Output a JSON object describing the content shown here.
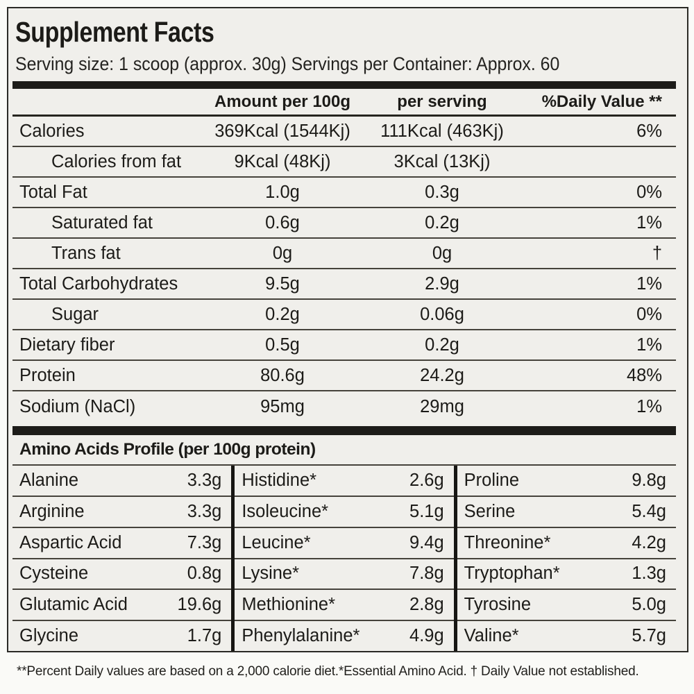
{
  "facts": {
    "title": "Supplement Facts",
    "serving_line": "Serving size: 1 scoop (approx. 30g) Servings per Container: Approx. 60",
    "headers": {
      "amount_per_100g": "Amount per 100g",
      "per_serving": "per serving",
      "daily_value": "%Daily Value **"
    },
    "rows": [
      {
        "name": "Calories",
        "indent": false,
        "per100g": "369Kcal (1544Kj)",
        "per_serving": "111Kcal (463Kj)",
        "dv": "6%"
      },
      {
        "name": "Calories from fat",
        "indent": true,
        "per100g": "9Kcal (48Kj)",
        "per_serving": "3Kcal (13Kj)",
        "dv": ""
      },
      {
        "name": "Total Fat",
        "indent": false,
        "per100g": "1.0g",
        "per_serving": "0.3g",
        "dv": "0%"
      },
      {
        "name": "Saturated fat",
        "indent": true,
        "per100g": "0.6g",
        "per_serving": "0.2g",
        "dv": "1%"
      },
      {
        "name": "Trans fat",
        "indent": true,
        "per100g": "0g",
        "per_serving": "0g",
        "dv": "†"
      },
      {
        "name": "Total Carbohydrates",
        "indent": false,
        "per100g": "9.5g",
        "per_serving": "2.9g",
        "dv": "1%"
      },
      {
        "name": "Sugar",
        "indent": true,
        "per100g": "0.2g",
        "per_serving": "0.06g",
        "dv": "0%"
      },
      {
        "name": "Dietary fiber",
        "indent": false,
        "per100g": "0.5g",
        "per_serving": "0.2g",
        "dv": "1%"
      },
      {
        "name": "Protein",
        "indent": false,
        "per100g": "80.6g",
        "per_serving": "24.2g",
        "dv": "48%"
      },
      {
        "name": "Sodium (NaCl)",
        "indent": false,
        "per100g": "95mg",
        "per_serving": "29mg",
        "dv": "1%"
      }
    ],
    "amino_profile": {
      "heading": "Amino Acids Profile (per 100g protein)",
      "columns": [
        {
          "items": [
            {
              "name": "Alanine",
              "value": "3.3g"
            },
            {
              "name": "Arginine",
              "value": "3.3g"
            },
            {
              "name": "Aspartic Acid",
              "value": "7.3g"
            },
            {
              "name": "Cysteine",
              "value": "0.8g"
            },
            {
              "name": "Glutamic Acid",
              "value": "19.6g"
            },
            {
              "name": "Glycine",
              "value": "1.7g"
            }
          ]
        },
        {
          "items": [
            {
              "name": "Histidine*",
              "value": "2.6g"
            },
            {
              "name": "Isoleucine*",
              "value": "5.1g"
            },
            {
              "name": "Leucine*",
              "value": "9.4g"
            },
            {
              "name": "Lysine*",
              "value": "7.8g"
            },
            {
              "name": "Methionine*",
              "value": "2.8g"
            },
            {
              "name": "Phenylalanine*",
              "value": "4.9g"
            }
          ]
        },
        {
          "items": [
            {
              "name": "Proline",
              "value": "9.8g"
            },
            {
              "name": "Serine",
              "value": "5.4g"
            },
            {
              "name": "Threonine*",
              "value": "4.2g"
            },
            {
              "name": "Tryptophan*",
              "value": "1.3g"
            },
            {
              "name": "Tyrosine",
              "value": "5.0g"
            },
            {
              "name": "Valine*",
              "value": "5.7g"
            }
          ]
        }
      ]
    },
    "footnote": "**Percent Daily values are based on a 2,000 calorie diet.*Essential Amino Acid. † Daily Value not established.",
    "colors": {
      "background": "#f0efeb",
      "page_background": "#fafaf7",
      "border": "#2b2a26",
      "thick_bar": "#1d1c19",
      "text": "#1c1b18"
    }
  }
}
